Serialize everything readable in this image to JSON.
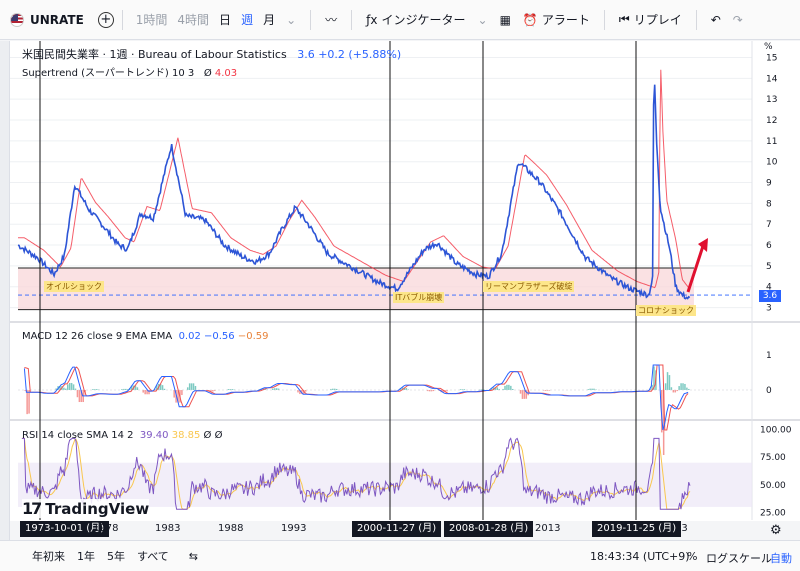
{
  "toolbar": {
    "symbol": "UNRATE",
    "timeframes": [
      "1時間",
      "4時間",
      "日",
      "週",
      "月"
    ],
    "selected_timeframe": "週",
    "indicators_label": "インジケーター",
    "alert_label": "アラート",
    "replay_label": "リプレイ"
  },
  "legends": {
    "main_title": "米国民間失業率 · 1週 · Bureau of Labour Statistics",
    "main_value": "3.6",
    "main_change": "+0.2 (+5.88%)",
    "supertrend_label": "Supertrend (スーパートレンド) 10 3",
    "supertrend_value": "4.03",
    "macd_label": "MACD 12 26 close 9 EMA EMA",
    "macd_v1": "0.02",
    "macd_v2": "−0.56",
    "macd_v3": "−0.59",
    "rsi_label": "RSI 14 close SMA 14 2",
    "rsi_v1": "39.40",
    "rsi_v2": "38.85"
  },
  "annotations": [
    "オイルショック",
    "ITバブル崩壊",
    "リーマンブラザーズ破綻",
    "コロナショック"
  ],
  "crosshair_dates": [
    "1973-10-01 (月)",
    "2000-11-27 (月)",
    "2008-01-28 (月)",
    "2019-11-25 (月)"
  ],
  "price_axis_unit": "%",
  "bottom": {
    "ranges": [
      "年初来",
      "1年",
      "5年",
      "すべて"
    ],
    "time": "18:43:34 (UTC+9)",
    "percent": "%",
    "log": "ログスケール",
    "auto": "自動"
  },
  "brand": "TradingView",
  "colors": {
    "series": "#2d55d6",
    "supertrend_up": "#4caf50",
    "supertrend_down": "#f23645",
    "band": "#f8d7da"
  },
  "chart_data": [
    {
      "type": "line",
      "title": "米国民間失業率 · 1週 · Bureau of Labour Statistics",
      "ylabel": "%",
      "ylim": [
        2.5,
        15.6
      ],
      "y_ticks": [
        3,
        4,
        5,
        6,
        7,
        8,
        9,
        10,
        11,
        12,
        13,
        14,
        15
      ],
      "x_ticks": [
        "1978",
        "1983",
        "1988",
        "1993",
        "2013",
        "23"
      ],
      "series": [
        {
          "name": "UNRATE",
          "x": [
            1971.0,
            1972.5,
            1973.8,
            1974.6,
            1975.4,
            1976.5,
            1977.5,
            1978.8,
            1979.5,
            1980.5,
            1981.5,
            1982.9,
            1984.0,
            1985.5,
            1987.0,
            1988.5,
            1989.5,
            1990.5,
            1991.5,
            1992.5,
            1993.5,
            1995.0,
            1997.0,
            1999.0,
            2000.4,
            2001.5,
            2002.5,
            2003.5,
            2005.0,
            2006.5,
            2007.5,
            2008.5,
            2009.5,
            2009.8,
            2010.5,
            2011.5,
            2013.0,
            2015.0,
            2017.0,
            2018.5,
            2019.9,
            2020.2,
            2020.3,
            2020.5,
            2020.8,
            2021.5,
            2022.0,
            2022.5,
            2023.1
          ],
          "values": [
            6.0,
            5.4,
            4.6,
            5.5,
            8.9,
            7.7,
            7.0,
            6.0,
            5.8,
            7.5,
            7.3,
            10.8,
            7.4,
            7.2,
            6.0,
            5.4,
            5.2,
            5.6,
            6.8,
            7.8,
            7.0,
            5.6,
            4.9,
            4.2,
            3.9,
            4.9,
            5.8,
            6.1,
            5.1,
            4.6,
            4.5,
            5.6,
            9.0,
            10.0,
            9.6,
            9.0,
            7.6,
            5.4,
            4.4,
            3.9,
            3.6,
            4.4,
            14.8,
            11.1,
            7.8,
            5.9,
            4.0,
            3.6,
            3.4
          ]
        }
      ],
      "horizontal_levels": [
        2.9,
        4.9
      ]
    },
    {
      "type": "line",
      "title": "MACD 12 26 close 9 EMA EMA",
      "y_ticks": [
        1,
        0
      ],
      "values_shown": [
        0.02,
        -0.56,
        -0.59
      ]
    },
    {
      "type": "line",
      "title": "RSI 14 close SMA 14 2",
      "ylim": [
        20,
        105
      ],
      "y_ticks": [
        100,
        75,
        50,
        25
      ],
      "values_shown": [
        39.4,
        38.85
      ]
    }
  ]
}
